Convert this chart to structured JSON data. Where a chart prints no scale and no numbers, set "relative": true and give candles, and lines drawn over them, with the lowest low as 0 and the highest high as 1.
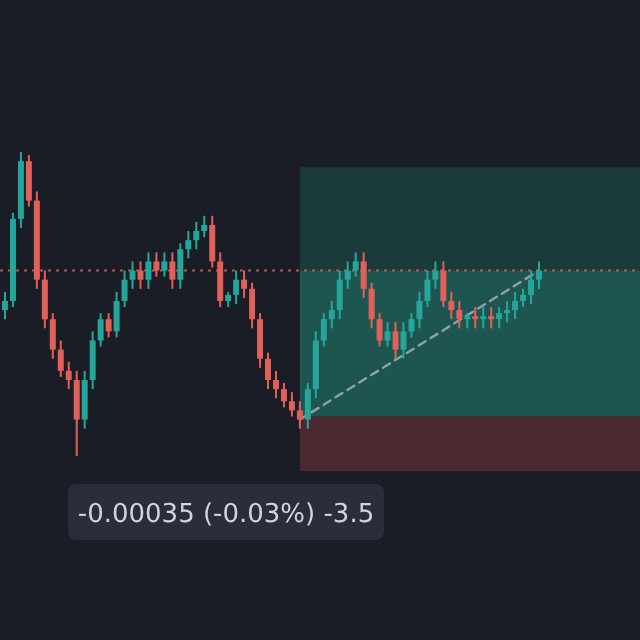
{
  "chart_data": {
    "type": "candlestick",
    "relative": true,
    "categories": [
      null,
      null,
      null,
      null,
      null,
      null,
      null,
      null,
      null,
      null,
      null,
      null,
      null,
      null,
      null,
      null,
      null,
      null,
      null,
      null,
      null,
      null,
      null,
      null,
      null,
      null,
      null,
      null,
      null,
      null,
      null,
      null,
      null,
      null,
      null,
      null,
      null,
      null,
      null,
      null,
      null,
      null,
      null,
      null,
      null,
      null,
      null,
      null,
      null,
      null,
      null,
      null,
      null,
      null,
      null,
      null,
      null,
      null,
      null,
      null,
      null,
      null,
      null,
      null,
      null,
      null,
      null,
      null
    ],
    "ohlc": [
      [
        0.48,
        0.54,
        0.45,
        0.51
      ],
      [
        0.51,
        0.8,
        0.49,
        0.78
      ],
      [
        0.78,
        1.0,
        0.75,
        0.97
      ],
      [
        0.97,
        0.99,
        0.82,
        0.84
      ],
      [
        0.84,
        0.87,
        0.55,
        0.58
      ],
      [
        0.58,
        0.61,
        0.42,
        0.45
      ],
      [
        0.45,
        0.47,
        0.32,
        0.35
      ],
      [
        0.35,
        0.38,
        0.26,
        0.28
      ],
      [
        0.28,
        0.31,
        0.22,
        0.25
      ],
      [
        0.25,
        0.28,
        0,
        0.12
      ],
      [
        0.12,
        0.28,
        0.09,
        0.25
      ],
      [
        0.25,
        0.41,
        0.22,
        0.38
      ],
      [
        0.38,
        0.47,
        0.36,
        0.45
      ],
      [
        0.45,
        0.47,
        0.39,
        0.41
      ],
      [
        0.41,
        0.54,
        0.39,
        0.51
      ],
      [
        0.51,
        0.61,
        0.49,
        0.58
      ],
      [
        0.58,
        0.64,
        0.55,
        0.61
      ],
      [
        0.61,
        0.64,
        0.55,
        0.58
      ],
      [
        0.58,
        0.67,
        0.55,
        0.64
      ],
      [
        0.64,
        0.67,
        0.59,
        0.61
      ],
      [
        0.61,
        0.67,
        0.59,
        0.64
      ],
      [
        0.64,
        0.67,
        0.55,
        0.58
      ],
      [
        0.58,
        0.7,
        0.55,
        0.68
      ],
      [
        0.68,
        0.74,
        0.65,
        0.71
      ],
      [
        0.71,
        0.77,
        0.68,
        0.74
      ],
      [
        0.74,
        0.79,
        0.72,
        0.76
      ],
      [
        0.76,
        0.79,
        0.62,
        0.64
      ],
      [
        0.64,
        0.67,
        0.49,
        0.51
      ],
      [
        0.51,
        0.54,
        0.49,
        0.53
      ],
      [
        0.53,
        0.61,
        0.5,
        0.58
      ],
      [
        0.58,
        0.61,
        0.52,
        0.55
      ],
      [
        0.55,
        0.57,
        0.42,
        0.45
      ],
      [
        0.45,
        0.47,
        0.29,
        0.32
      ],
      [
        0.32,
        0.34,
        0.22,
        0.25
      ],
      [
        0.25,
        0.28,
        0.19,
        0.22
      ],
      [
        0.22,
        0.24,
        0.16,
        0.18
      ],
      [
        0.18,
        0.21,
        0.13,
        0.15
      ],
      [
        0.15,
        0.18,
        0.09,
        0.12
      ],
      [
        0.12,
        0.24,
        0.09,
        0.22
      ],
      [
        0.22,
        0.41,
        0.19,
        0.38
      ],
      [
        0.38,
        0.47,
        0.36,
        0.45
      ],
      [
        0.45,
        0.51,
        0.42,
        0.48
      ],
      [
        0.48,
        0.61,
        0.45,
        0.58
      ],
      [
        0.58,
        0.64,
        0.55,
        0.61
      ],
      [
        0.61,
        0.67,
        0.59,
        0.64
      ],
      [
        0.64,
        0.67,
        0.52,
        0.55
      ],
      [
        0.55,
        0.57,
        0.42,
        0.45
      ],
      [
        0.45,
        0.47,
        0.36,
        0.38
      ],
      [
        0.38,
        0.44,
        0.36,
        0.41
      ],
      [
        0.41,
        0.44,
        0.32,
        0.35
      ],
      [
        0.35,
        0.44,
        0.32,
        0.41
      ],
      [
        0.41,
        0.47,
        0.39,
        0.45
      ],
      [
        0.45,
        0.54,
        0.42,
        0.51
      ],
      [
        0.51,
        0.61,
        0.49,
        0.58
      ],
      [
        0.58,
        0.64,
        0.55,
        0.61
      ],
      [
        0.61,
        0.64,
        0.49,
        0.51
      ],
      [
        0.51,
        0.54,
        0.45,
        0.48
      ],
      [
        0.48,
        0.51,
        0.42,
        0.45
      ],
      [
        0.45,
        0.47,
        0.42,
        0.46
      ],
      [
        0.46,
        0.49,
        0.42,
        0.45
      ],
      [
        0.45,
        0.49,
        0.42,
        0.46
      ],
      [
        0.46,
        0.49,
        0.42,
        0.45
      ],
      [
        0.45,
        0.49,
        0.42,
        0.47
      ],
      [
        0.47,
        0.51,
        0.44,
        0.48
      ],
      [
        0.48,
        0.54,
        0.45,
        0.51
      ],
      [
        0.51,
        0.55,
        0.49,
        0.53
      ],
      [
        0.53,
        0.61,
        0.5,
        0.58
      ],
      [
        0.58,
        0.64,
        0.55,
        0.61
      ]
    ],
    "series": [
      {
        "type": "line",
        "values": [
          null,
          null,
          null,
          null,
          null,
          null,
          null,
          null,
          null,
          null,
          null,
          null,
          null,
          null,
          null,
          null,
          null,
          null,
          null,
          null,
          null,
          null,
          null,
          null,
          null,
          null,
          null,
          null,
          null,
          null,
          null,
          null,
          null,
          null,
          null,
          null,
          null,
          0.12,
          null,
          null,
          null,
          null,
          null,
          null,
          null,
          null,
          null,
          null,
          null,
          null,
          null,
          null,
          null,
          null,
          null,
          null,
          null,
          null,
          null,
          null,
          null,
          null,
          null,
          null,
          null,
          null,
          null,
          0.61
        ],
        "color": "#8fa3a8",
        "line_style": "dashed"
      }
    ],
    "bands": [
      {
        "axis": "y",
        "from": 0.61,
        "to": 0.95,
        "color": "#1b3b3b"
      },
      {
        "axis": "y",
        "from": 0.13,
        "to": 0.61,
        "color": "#1d5650"
      },
      {
        "axis": "y",
        "from": -0.05,
        "to": 0.13,
        "color": "#4a2a30"
      }
    ],
    "ref_lines": [
      {
        "axis": "y",
        "value": 0.61,
        "color": "#c0504d",
        "line_style": "dotted"
      }
    ],
    "annotations": [
      "-0.00035 (-0.03%) -3.5"
    ]
  }
}
